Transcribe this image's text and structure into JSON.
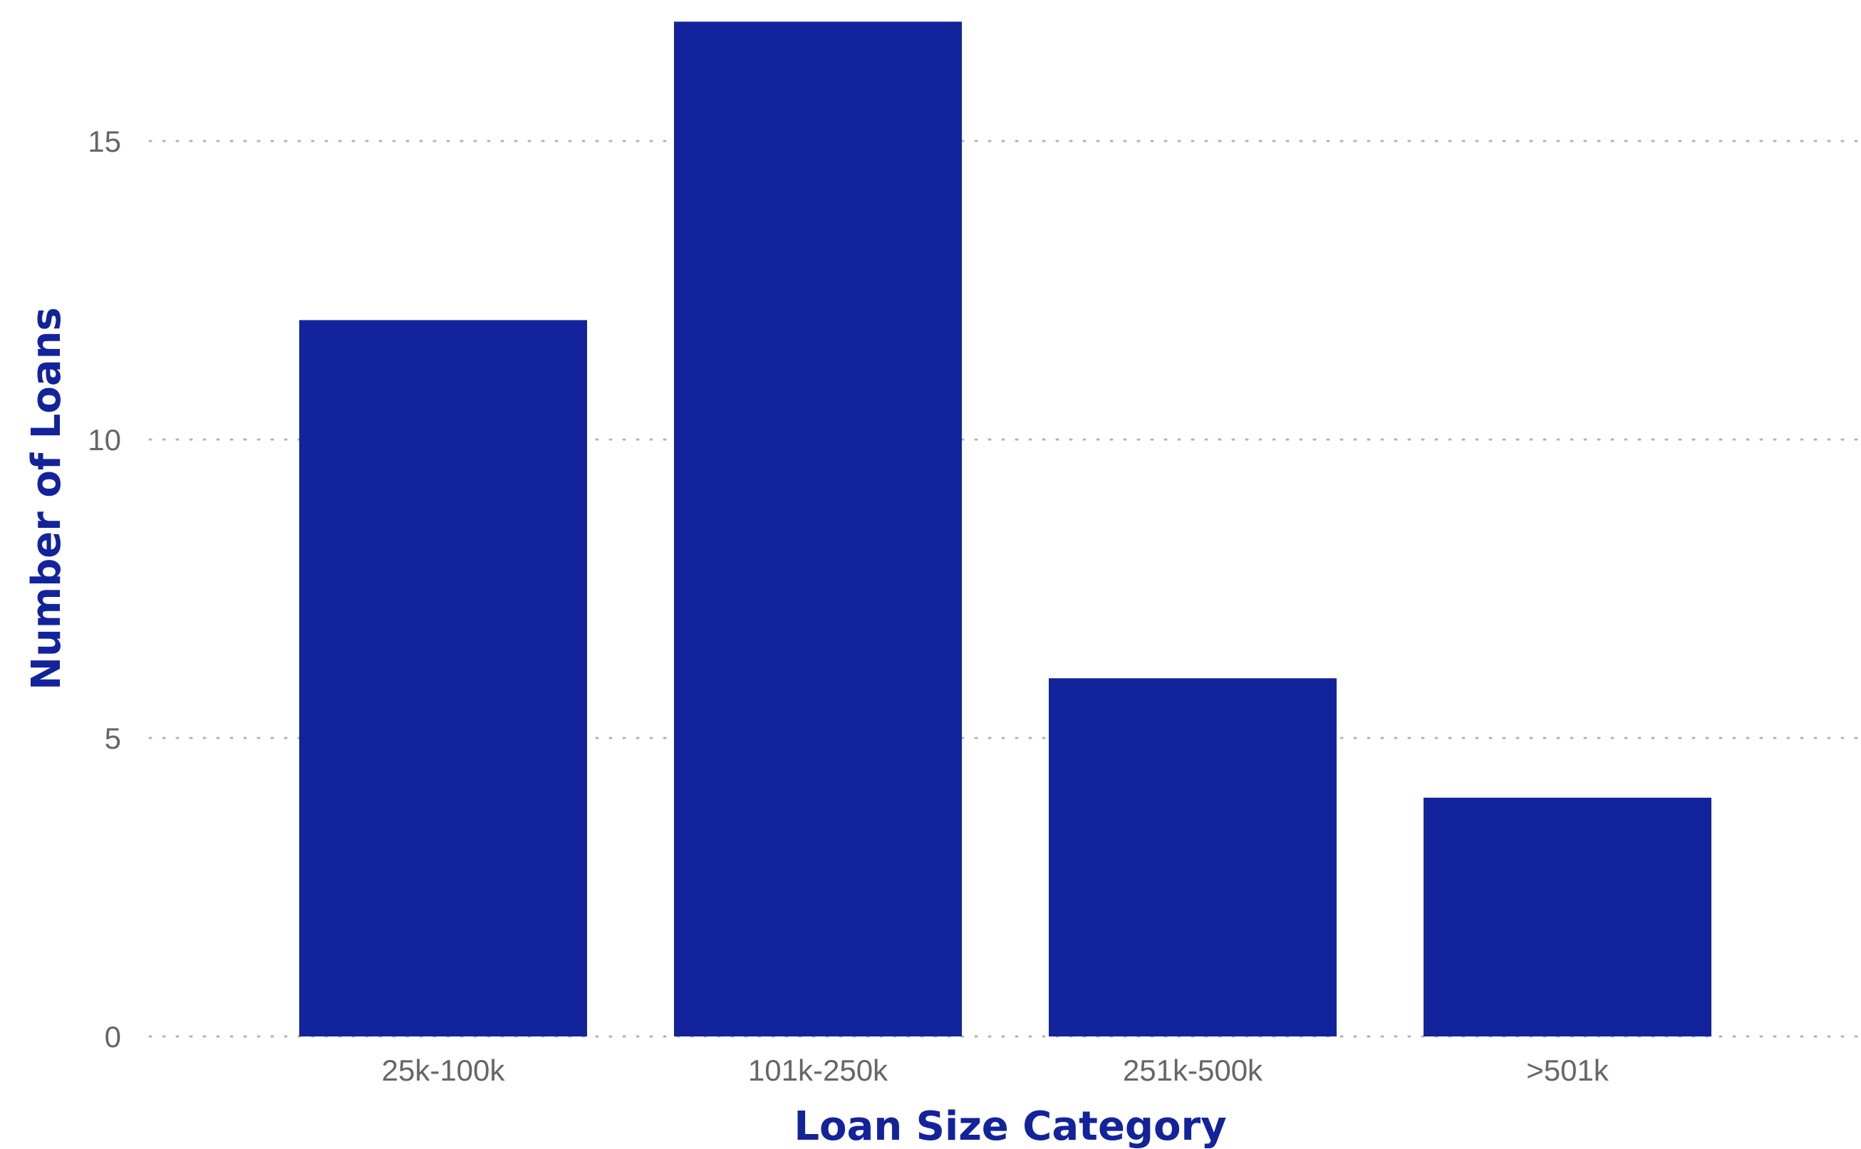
{
  "chart_data": {
    "type": "bar",
    "title": "",
    "xlabel": "Loan Size Category",
    "ylabel": "Number of Loans",
    "categories": [
      "25k-100k",
      "101k-250k",
      "251k-500k",
      ">501k"
    ],
    "values": [
      12,
      17,
      6,
      4
    ],
    "ylim": [
      0,
      17
    ],
    "yticks": [
      0,
      5,
      10,
      15
    ],
    "ytick_labels": [
      "0",
      "5",
      "10",
      "15"
    ],
    "grid": "horizontal dotted",
    "legend": "none"
  },
  "colors": {
    "bar": "#13239b",
    "axis_title": "#13239b",
    "tick_label": "#666666",
    "grid": "#b3b3b3"
  }
}
